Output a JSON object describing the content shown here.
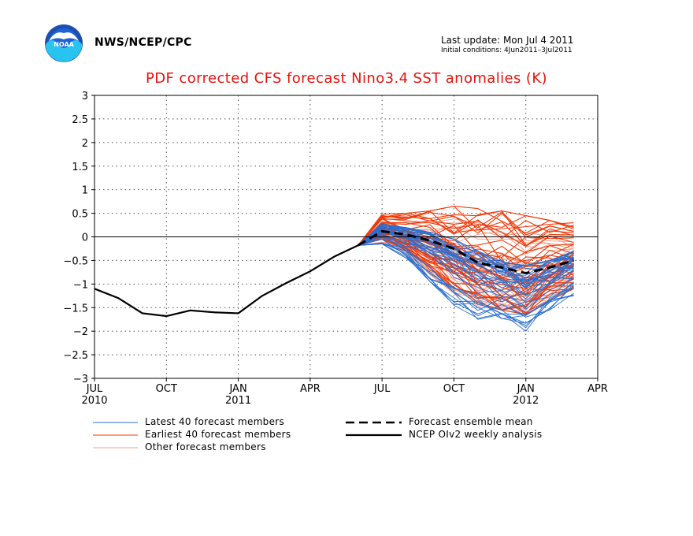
{
  "header": {
    "org": "NWS/NCEP/CPC",
    "last_update": "Last update: Mon Jul  4 2011",
    "initial_conditions": "Initial conditions:  4Jun2011–3Jul2011"
  },
  "colors": {
    "latest": "#2a6fd2",
    "earliest": "#f03a0a",
    "other": "#f4a088",
    "mean": "#000000",
    "analysis": "#000000",
    "title": "#e8110b"
  },
  "chart_data": {
    "type": "line",
    "title": "PDF corrected CFS forecast Nino3.4 SST anomalies (K)",
    "ylim": [
      -3,
      3
    ],
    "yticks": [
      3,
      2.5,
      2,
      1.5,
      1,
      0.5,
      0,
      -0.5,
      -1,
      -1.5,
      -2,
      -2.5,
      -3
    ],
    "ytick_labels": [
      "3",
      "2.5",
      "2",
      "1.5",
      "1",
      "0.5",
      "0",
      "−0.5",
      "−1",
      "−1.5",
      "−2",
      "−2.5",
      "−3"
    ],
    "xlim": [
      "2010-07",
      "2012-04"
    ],
    "xticks": [
      {
        "month": "2010-07",
        "label": "JUL",
        "year": "2010"
      },
      {
        "month": "2010-10",
        "label": "OCT",
        "year": ""
      },
      {
        "month": "2011-01",
        "label": "JAN",
        "year": "2011"
      },
      {
        "month": "2011-04",
        "label": "APR",
        "year": ""
      },
      {
        "month": "2011-07",
        "label": "JUL",
        "year": ""
      },
      {
        "month": "2011-10",
        "label": "OCT",
        "year": ""
      },
      {
        "month": "2012-01",
        "label": "JAN",
        "year": "2012"
      },
      {
        "month": "2012-04",
        "label": "APR",
        "year": ""
      }
    ],
    "grid": true,
    "zero_line": true,
    "analysis": {
      "name": "NCEP OIv2 weekly analysis",
      "x": [
        "2010-07",
        "2010-08",
        "2010-09",
        "2010-10",
        "2010-11",
        "2010-12",
        "2011-01",
        "2011-02",
        "2011-03",
        "2011-04",
        "2011-05",
        "2011-06"
      ],
      "y": [
        -1.1,
        -1.3,
        -1.62,
        -1.68,
        -1.56,
        -1.6,
        -1.62,
        -1.25,
        -0.98,
        -0.73,
        -0.42,
        -0.18
      ]
    },
    "ensemble_mean": {
      "name": "Forecast ensemble mean",
      "x": [
        "2011-06",
        "2011-07",
        "2011-08",
        "2011-09",
        "2011-10",
        "2011-11",
        "2011-12",
        "2012-01",
        "2012-02",
        "2012-03"
      ],
      "y": [
        -0.18,
        0.12,
        0.05,
        -0.08,
        -0.25,
        -0.55,
        -0.65,
        -0.77,
        -0.65,
        -0.5
      ]
    },
    "members": {
      "x": [
        "2011-06",
        "2011-07",
        "2011-08",
        "2011-09",
        "2011-10",
        "2011-11",
        "2011-12",
        "2012-01",
        "2012-02",
        "2012-03"
      ],
      "start_value": -0.18,
      "latest": {
        "name": "Latest 40 forecast members",
        "count": 40,
        "low": [
          -0.18,
          -0.15,
          -0.45,
          -0.95,
          -1.45,
          -1.75,
          -1.8,
          -2.0,
          -1.55,
          -1.25
        ],
        "high": [
          -0.18,
          0.28,
          0.2,
          0.1,
          -0.05,
          -0.3,
          -0.5,
          -0.6,
          -0.5,
          -0.3
        ]
      },
      "earliest": {
        "name": "Earliest 40 forecast members",
        "count": 40,
        "low": [
          -0.18,
          -0.05,
          -0.3,
          -0.7,
          -1.1,
          -1.45,
          -1.55,
          -1.65,
          -1.35,
          -1.1
        ],
        "high": [
          -0.18,
          0.48,
          0.5,
          0.55,
          0.65,
          0.6,
          0.55,
          0.45,
          0.35,
          0.3
        ]
      },
      "other": {
        "name": "Other forecast members",
        "count": 30,
        "low": [
          -0.18,
          -0.12,
          -0.35,
          -0.8,
          -1.2,
          -1.5,
          -1.55,
          -1.6,
          -1.35,
          -1.1
        ],
        "high": [
          -0.18,
          0.35,
          0.35,
          0.35,
          0.4,
          0.3,
          0.2,
          0.1,
          0.1,
          0.05
        ]
      }
    }
  },
  "legend": {
    "latest_label": "Latest 40 forecast members",
    "earliest_label": "Earliest 40 forecast members",
    "other_label": "Other forecast members",
    "mean_label": "Forecast ensemble mean",
    "analysis_label": "NCEP OIv2 weekly analysis"
  }
}
